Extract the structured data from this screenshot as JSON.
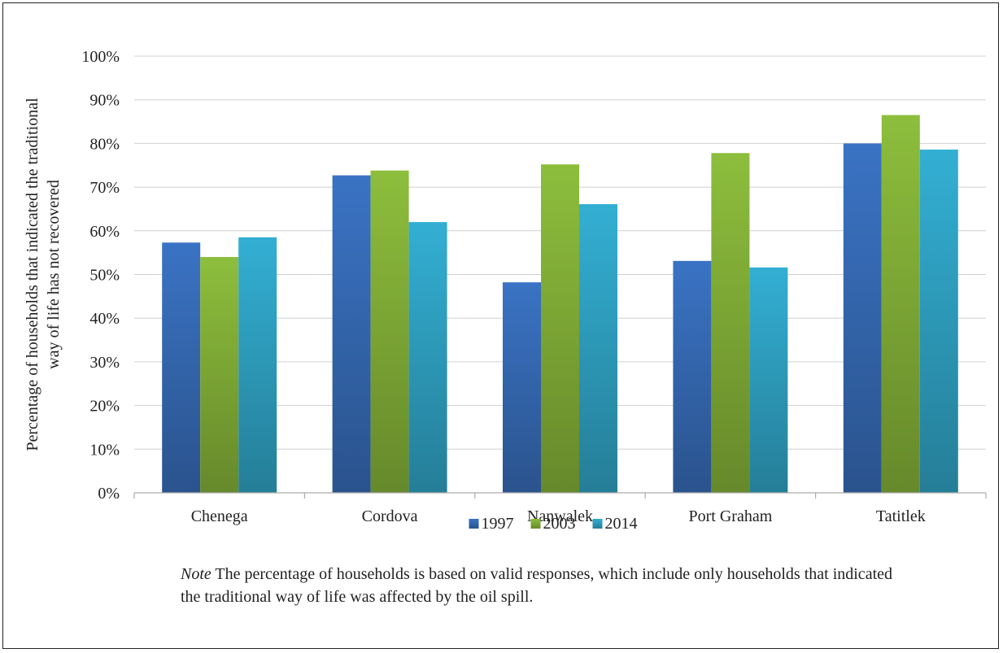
{
  "chart_data": {
    "type": "bar",
    "categories": [
      "Chenega",
      "Cordova",
      "Nanwalek",
      "Port Graham",
      "Tatitlek"
    ],
    "series": [
      {
        "name": "1997",
        "values": [
          57.3,
          72.7,
          48.2,
          53.1,
          80.0
        ],
        "color": "#3A73C4"
      },
      {
        "name": "2003",
        "values": [
          54.0,
          73.8,
          75.2,
          77.8,
          86.5
        ],
        "color": "#8DBE3C"
      },
      {
        "name": "2014",
        "values": [
          58.5,
          62.0,
          66.1,
          51.6,
          78.6
        ],
        "color": "#33AFD3"
      }
    ],
    "ylabel_lines": [
      "Percentage of households that indicated the traditional",
      "way of life has not recovered"
    ],
    "ylim": [
      0,
      100
    ],
    "yticks": [
      "0%",
      "10%",
      "20%",
      "30%",
      "40%",
      "50%",
      "60%",
      "70%",
      "80%",
      "90%",
      "100%"
    ],
    "grid": true,
    "legend_position": "bottom"
  },
  "note": {
    "label": "Note",
    "text": " The percentage of households is based on valid responses, which include only households that indicated the traditional way of life was affected by the oil spill."
  }
}
